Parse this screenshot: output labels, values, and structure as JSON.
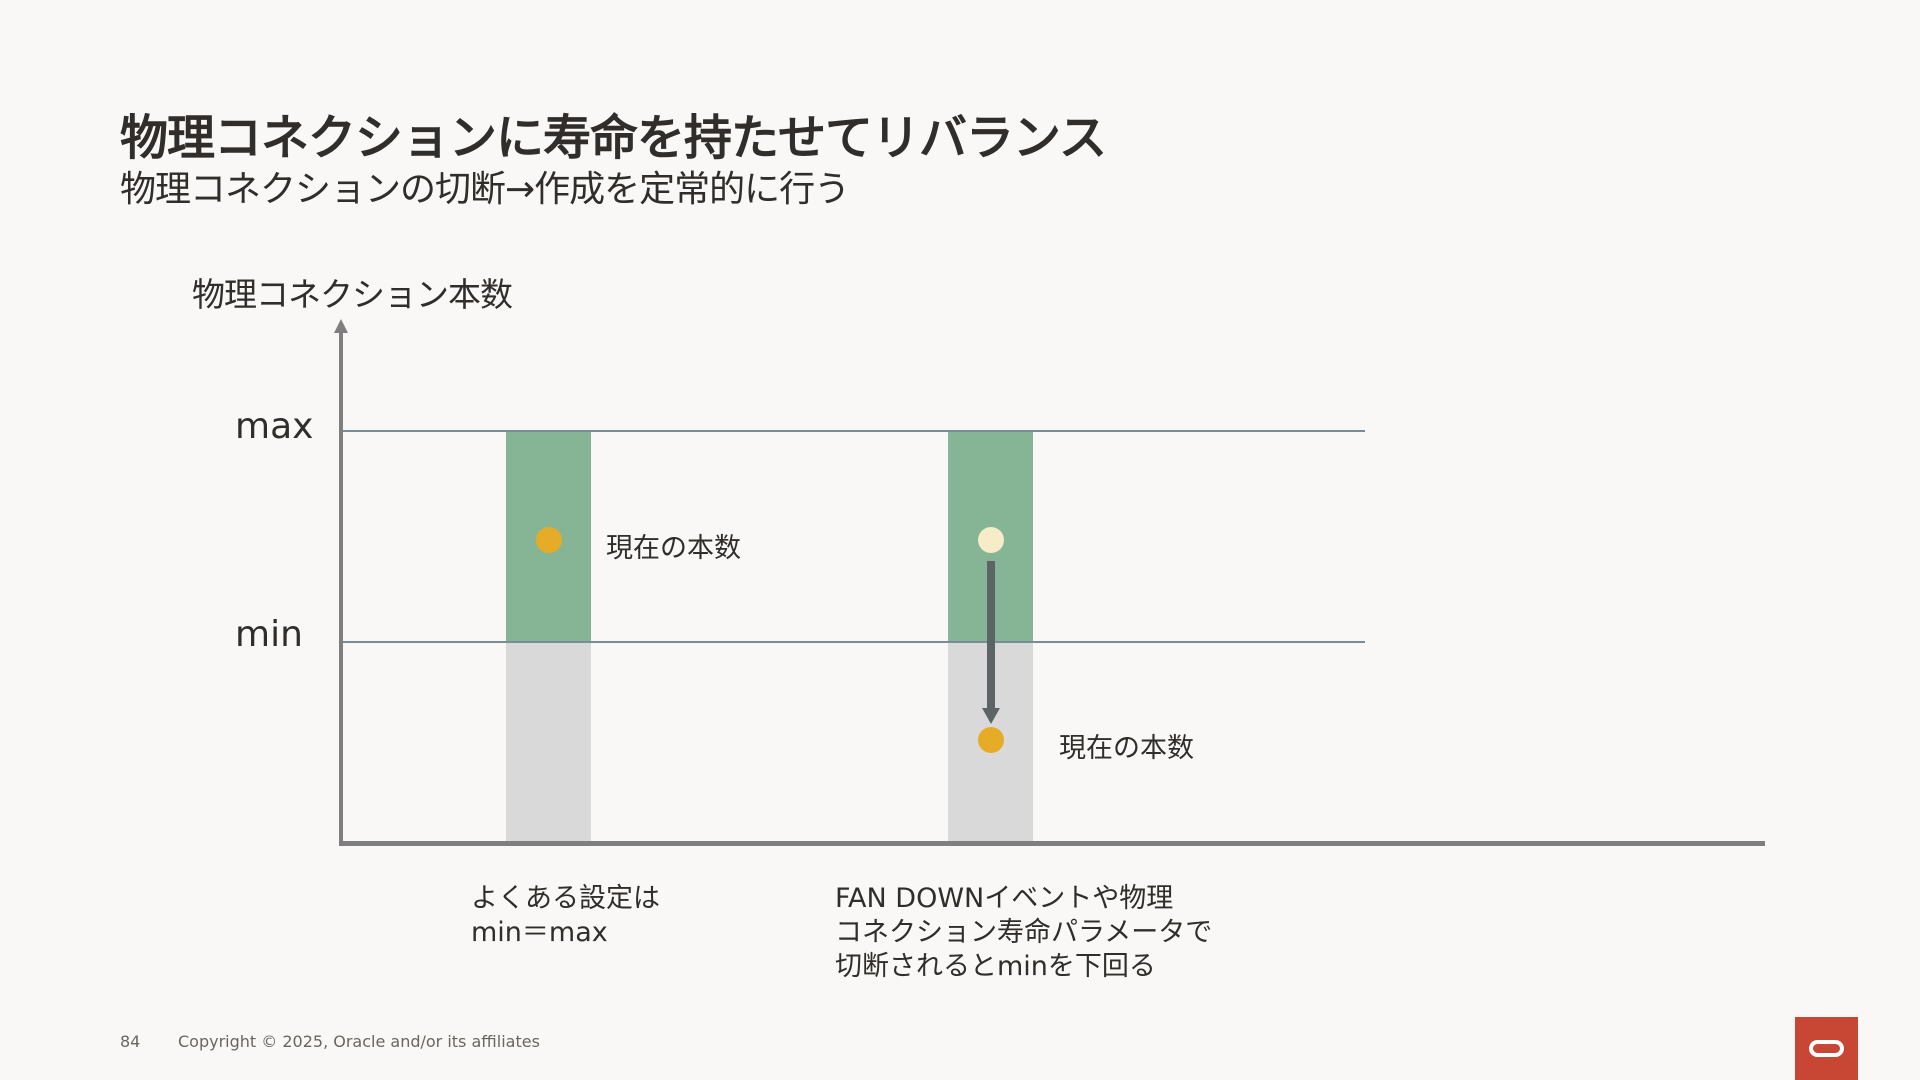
{
  "header": {
    "title": "物理コネクションに寿命を持たせてリバランス",
    "subtitle": "物理コネクションの切断→作成を定常的に行う"
  },
  "diagram": {
    "y_axis_label": "物理コネクション本数",
    "levels": {
      "max": "max",
      "min": "min"
    },
    "current_count_label": "現在の本数",
    "captions": {
      "left": [
        "よくある設定は",
        "min＝max"
      ],
      "right": [
        "FAN DOWNイベントや物理",
        "コネクション寿命パラメータで",
        "切断されるとminを下回る"
      ]
    },
    "colors": {
      "pool_range": "#86b596",
      "below_min": "#d9d9d9",
      "current_dot": "#e6ac27",
      "previous_dot": "#f6ecc8",
      "arrow": "#5d6466",
      "axis": "#7f7f7f"
    }
  },
  "footer": {
    "page_number": "84",
    "copyright": "Copyright © 2025, Oracle and/or its affiliates"
  },
  "logo": {
    "name": "oracle-logo",
    "color": "#c74634"
  }
}
